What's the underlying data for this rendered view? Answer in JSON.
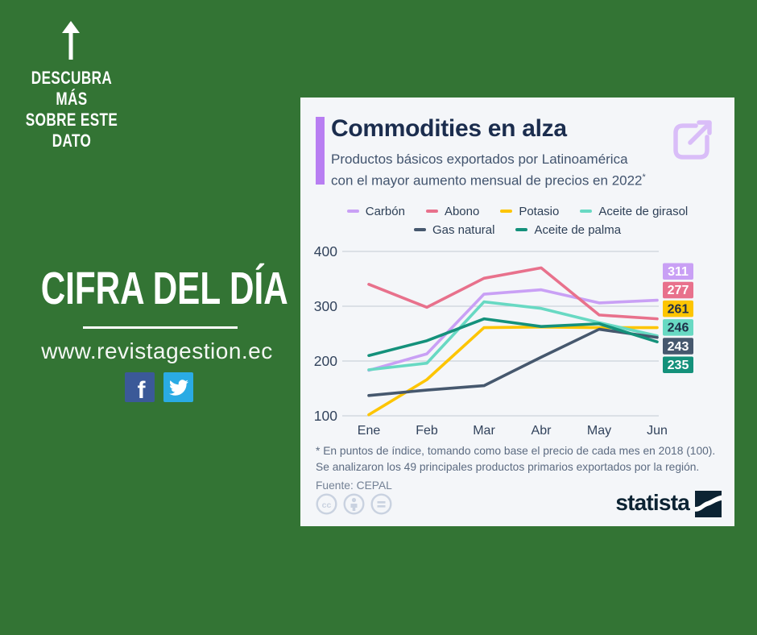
{
  "page": {
    "background_color": "#337434",
    "card_background": "#f4f6f9"
  },
  "left_panel": {
    "discover": {
      "line1": "DESCUBRA MÁS",
      "line2": "SOBRE ESTE",
      "line3": "DATO"
    },
    "headline": "CIFRA DEL DÍA",
    "website": "www.revistagestion.ec",
    "social": {
      "facebook_color": "#3b5998",
      "twitter_color": "#2aabe4"
    }
  },
  "card": {
    "title": "Commodities en alza",
    "subtitle_line1": "Productos básicos exportados por Latinoamérica",
    "subtitle_line2": "con el mayor aumento mensual de precios en 2022",
    "subtitle_sup": "*",
    "accent_color": "#b87ef2",
    "external_link_color": "#d9bdf8",
    "footnote_line1": "* En puntos de índice, tomando como base el precio de cada mes en 2018 (100).",
    "footnote_line2": "Se analizaron los 49 principales productos primarios exportados por la región.",
    "source": "Fuente: CEPAL",
    "brand": "statista"
  },
  "chart_data": {
    "type": "line",
    "title": "Commodities en alza",
    "categories": [
      "Ene",
      "Feb",
      "Mar",
      "Abr",
      "May",
      "Jun"
    ],
    "y_ticks": [
      100,
      200,
      300,
      400
    ],
    "ylim": [
      100,
      400
    ],
    "grid": true,
    "legend_position": "top",
    "series": [
      {
        "name": "Carbón",
        "color": "#c9a0f5",
        "values": [
          183,
          213,
          322,
          330,
          306,
          311
        ],
        "end_label": "311",
        "label_text": "#ffffff"
      },
      {
        "name": "Abono",
        "color": "#e8718c",
        "values": [
          340,
          298,
          351,
          370,
          284,
          277
        ],
        "end_label": "277",
        "label_text": "#ffffff"
      },
      {
        "name": "Potasio",
        "color": "#fdc502",
        "values": [
          102,
          166,
          261,
          262,
          261,
          261
        ],
        "end_label": "261",
        "label_text": "#1e2f48"
      },
      {
        "name": "Aceite de girasol",
        "color": "#68d9c3",
        "values": [
          184,
          196,
          308,
          296,
          270,
          246
        ],
        "end_label": "246",
        "label_text": "#1e2f48"
      },
      {
        "name": "Gas natural",
        "color": "#46586e",
        "values": [
          137,
          147,
          155,
          207,
          258,
          243
        ],
        "end_label": "243",
        "label_text": "#ffffff"
      },
      {
        "name": "Aceite de palma",
        "color": "#14917b",
        "values": [
          210,
          237,
          277,
          263,
          268,
          235
        ],
        "end_label": "235",
        "label_text": "#ffffff"
      }
    ]
  }
}
